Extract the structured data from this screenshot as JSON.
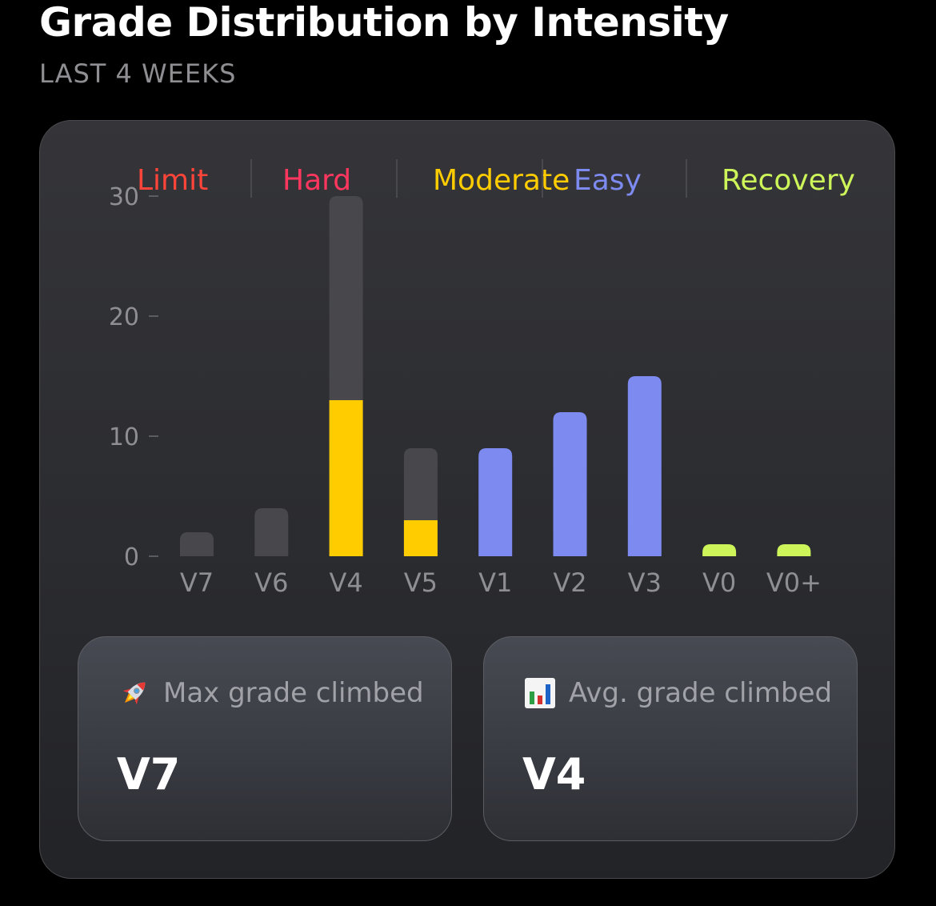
{
  "header": {
    "title": "Grade Distribution by Intensity",
    "subtitle": "LAST 4 WEEKS"
  },
  "chart_data": {
    "type": "bar",
    "stacked": true,
    "legend": [
      {
        "label": "Limit",
        "color": "#ff453a"
      },
      {
        "label": "Hard",
        "color": "#ff375f"
      },
      {
        "label": "Moderate",
        "color": "#ffcc00"
      },
      {
        "label": "Easy",
        "color": "#7d8bf0"
      },
      {
        "label": "Recovery",
        "color": "#cdf55a"
      }
    ],
    "legend_placement": "top",
    "categories": [
      "V7",
      "V6",
      "V4",
      "V5",
      "V1",
      "V2",
      "V3",
      "V0",
      "V0+"
    ],
    "bars": [
      {
        "grade": "V7",
        "total": 2,
        "highlight": 0,
        "color": "#48484c"
      },
      {
        "grade": "V6",
        "total": 4,
        "highlight": 0,
        "color": "#48484c"
      },
      {
        "grade": "V4",
        "total": 30,
        "highlight": 13,
        "color": "#ffcc00"
      },
      {
        "grade": "V5",
        "total": 9,
        "highlight": 3,
        "color": "#ffcc00"
      },
      {
        "grade": "V1",
        "total": 9,
        "highlight": 9,
        "color": "#7d8bf0"
      },
      {
        "grade": "V2",
        "total": 12,
        "highlight": 12,
        "color": "#7d8bf0"
      },
      {
        "grade": "V3",
        "total": 15,
        "highlight": 15,
        "color": "#7d8bf0"
      },
      {
        "grade": "V0",
        "total": 1,
        "highlight": 1,
        "color": "#cdf55a"
      },
      {
        "grade": "V0+",
        "total": 1,
        "highlight": 1,
        "color": "#cdf55a"
      }
    ],
    "base_color": "#48484c",
    "ylim": [
      0,
      30
    ],
    "yticks": [
      0,
      10,
      20,
      30
    ],
    "grid": false,
    "xlabel": "",
    "ylabel": ""
  },
  "stats": {
    "max": {
      "label": "Max grade climbed",
      "value": "V7",
      "icon": "rocket-icon"
    },
    "avg": {
      "label": "Avg. grade climbed",
      "value": "V4",
      "icon": "bar-chart-icon"
    }
  }
}
